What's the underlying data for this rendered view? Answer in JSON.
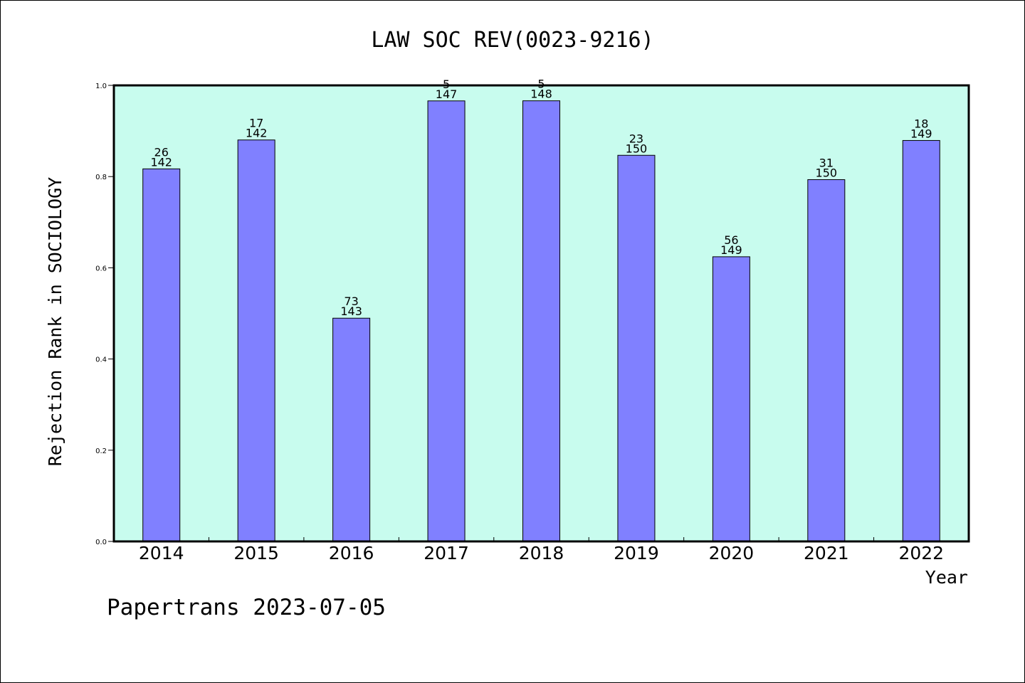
{
  "chart_data": {
    "type": "bar",
    "title": "LAW SOC REV(0023-9216)",
    "xlabel": "Year",
    "ylabel": "Rejection Rank in SOCIOLOGY",
    "categories": [
      "2014",
      "2015",
      "2016",
      "2017",
      "2018",
      "2019",
      "2020",
      "2021",
      "2022"
    ],
    "values": [
      0.8169,
      0.8803,
      0.4895,
      0.966,
      0.9662,
      0.8467,
      0.6242,
      0.7933,
      0.8792
    ],
    "rank_labels": [
      "26",
      "17",
      "73",
      "5",
      "5",
      "23",
      "56",
      "31",
      "18"
    ],
    "total_labels": [
      "142",
      "142",
      "143",
      "147",
      "148",
      "150",
      "149",
      "150",
      "149"
    ],
    "ylim": [
      0,
      1
    ],
    "yticks": [
      "0.0",
      "0.2",
      "0.4",
      "0.6",
      "0.8",
      "1.0"
    ],
    "grid": false,
    "colors": {
      "plot_background": "#c8fcee",
      "bar_fill": "#8080ff",
      "bar_stroke": "#000000"
    }
  },
  "footer": "Papertrans 2023-07-05"
}
